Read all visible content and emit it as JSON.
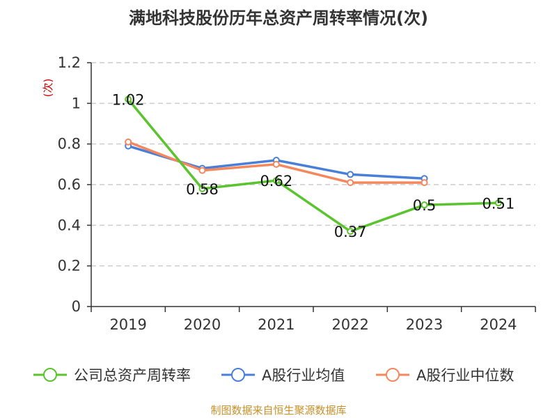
{
  "chart_data": {
    "type": "line",
    "title": "满地科技股份历年总资产周转率情况(次)",
    "ylabel": "(次)",
    "xlabel": "",
    "categories": [
      "2019",
      "2020",
      "2021",
      "2022",
      "2023",
      "2024"
    ],
    "ylim": [
      0,
      1.2
    ],
    "yticks": [
      "0",
      "0.2",
      "0.4",
      "0.6",
      "0.8",
      "1",
      "1.2"
    ],
    "grid": true,
    "legend_position": "bottom",
    "series": [
      {
        "name": "公司总资产周转率",
        "color": "#5ac42e",
        "values": [
          1.02,
          0.58,
          0.62,
          0.37,
          0.5,
          0.51
        ],
        "labels": [
          "1.02",
          "0.58",
          "0.62",
          "0.37",
          "0.5",
          "0.51"
        ]
      },
      {
        "name": "A股行业均值",
        "color": "#4a7fd8",
        "values": [
          0.79,
          0.68,
          0.72,
          0.65,
          0.63,
          null
        ]
      },
      {
        "name": "A股行业中位数",
        "color": "#f4875c",
        "values": [
          0.81,
          0.67,
          0.7,
          0.61,
          0.61,
          null
        ]
      }
    ],
    "source": "制图数据来自恒生聚源数据库",
    "colors": {
      "unit": "#cc0000",
      "source": "#c8902a",
      "grid": "#cccccc",
      "axis": "#333333"
    }
  }
}
